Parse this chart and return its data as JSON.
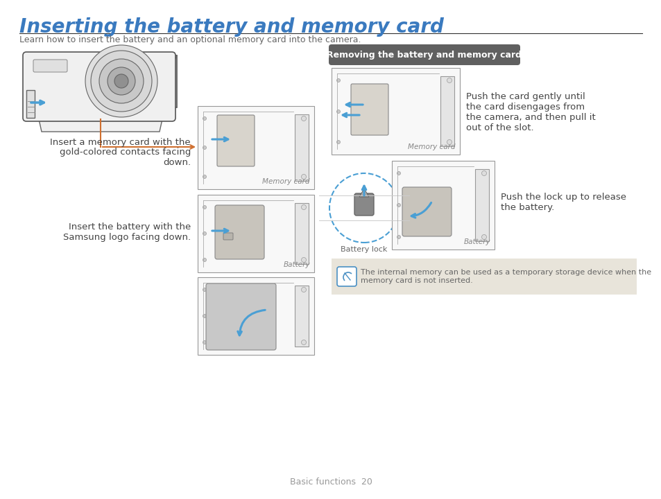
{
  "title": "Inserting the battery and memory card",
  "subtitle": "Learn how to insert the battery and an optional memory card into the camera.",
  "title_color": "#3a7abf",
  "title_fontsize": 20,
  "subtitle_fontsize": 9,
  "subtitle_color": "#666666",
  "bg_color": "#ffffff",
  "body_text_color": "#444444",
  "memory_card_label": "Memory card",
  "battery_label": "Battery",
  "battery_lock_label": "Battery lock",
  "removing_badge_text": "Removing the battery and memory card",
  "removing_badge_color": "#606060",
  "removing_badge_text_color": "#ffffff",
  "push_card_text": "Push the card gently until\nthe card disengages from\nthe camera, and then pull it\nout of the slot.",
  "push_lock_text": "Push the lock up to release\nthe battery.",
  "insert_card_text": "Insert a memory card with the\ngold-colored contacts facing\ndown.",
  "insert_battery_text": "Insert the battery with the\nSamsung logo facing down.",
  "note_bg_color": "#e8e4da",
  "note_icon_color": "#4a90c4",
  "note_text": "The internal memory can be used as a temporary storage device when the\nmemory card is not inserted.",
  "footer_text": "Basic functions  20",
  "footer_color": "#999999",
  "footer_fontsize": 9,
  "line_color": "#333333",
  "box_edge_color": "#999999",
  "box_face_color": "#f8f8f8",
  "inner_face_color": "#ebebeb",
  "card_color": "#d8d4cc",
  "battery_color": "#c8c4bc",
  "arrow_blue": "#4a9fd4",
  "arrow_orange": "#d07030",
  "door_color": "#c8c8c8"
}
